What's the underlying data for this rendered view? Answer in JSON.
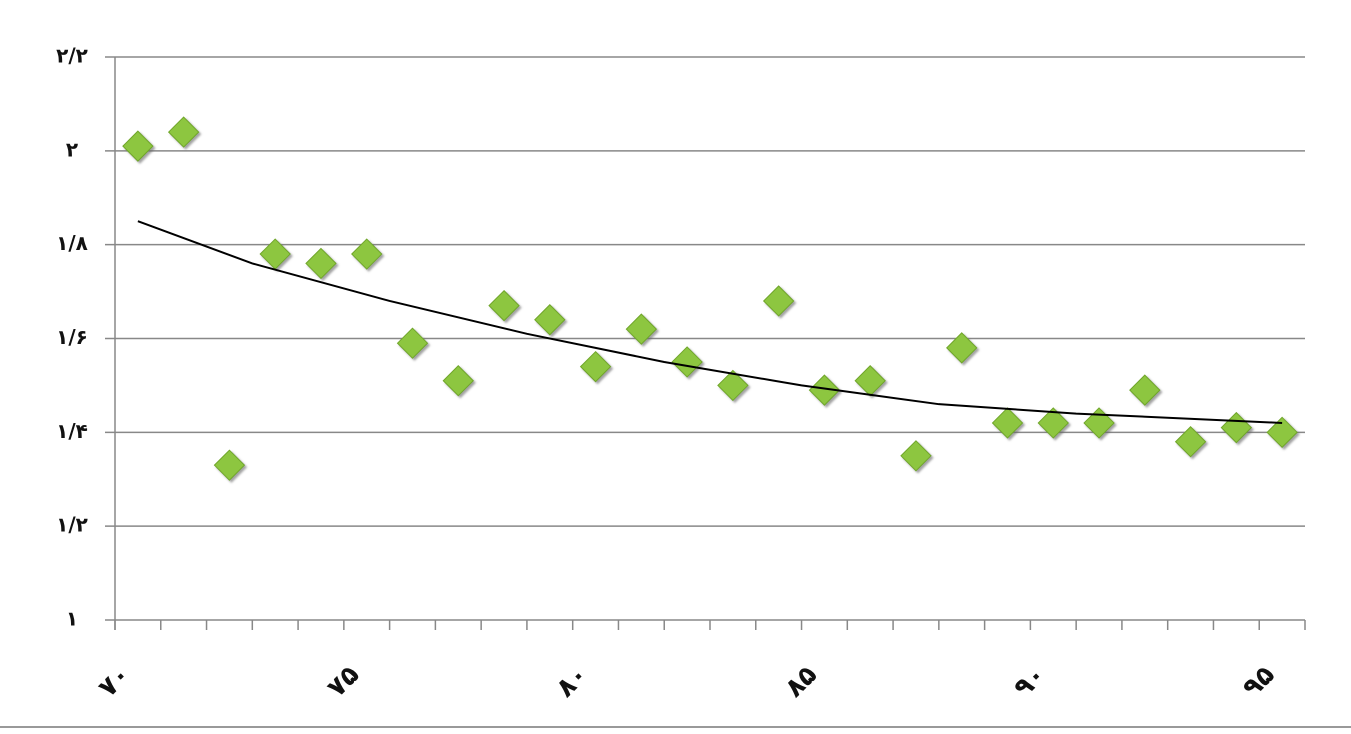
{
  "chart_data": {
    "type": "scatter",
    "x": [
      70.5,
      71.5,
      72.5,
      73.5,
      74.5,
      75.5,
      76.5,
      77.5,
      78.5,
      79.5,
      80.5,
      81.5,
      82.5,
      83.5,
      84.5,
      85.5,
      86.5,
      87.5,
      88.5,
      89.5,
      90.5,
      91.5,
      92.5,
      93.5,
      94.5,
      95.5
    ],
    "values": [
      2.01,
      2.04,
      1.33,
      1.78,
      1.76,
      1.78,
      1.59,
      1.51,
      1.67,
      1.64,
      1.54,
      1.62,
      1.55,
      1.5,
      1.68,
      1.49,
      1.51,
      1.35,
      1.58,
      1.42,
      1.42,
      1.42,
      1.49,
      1.38,
      1.41,
      1.4
    ],
    "color": "#8dc63f",
    "trendline": {
      "x": [
        70.5,
        73,
        76,
        79,
        82,
        85,
        88,
        91,
        95.5
      ],
      "y": [
        1.85,
        1.76,
        1.68,
        1.61,
        1.55,
        1.5,
        1.46,
        1.44,
        1.42
      ],
      "color": "#000000"
    },
    "xlim": [
      70,
      96
    ],
    "xticks": [
      {
        "value": 70,
        "label": "۷۰"
      },
      {
        "value": 75,
        "label": "۷۵"
      },
      {
        "value": 80,
        "label": "۸۰"
      },
      {
        "value": 85,
        "label": "۸۵"
      },
      {
        "value": 90,
        "label": "۹۰"
      },
      {
        "value": 95,
        "label": "۹۵"
      }
    ],
    "x_minor_ticks": [
      71,
      72,
      73,
      74,
      76,
      77,
      78,
      79,
      81,
      82,
      83,
      84,
      86,
      87,
      88,
      89,
      91,
      92,
      93,
      94,
      96
    ],
    "ylim": [
      1,
      2.2
    ],
    "yticks": [
      {
        "value": 1,
        "label": "۱"
      },
      {
        "value": 1.2,
        "label": "۱/۲"
      },
      {
        "value": 1.4,
        "label": "۱/۴"
      },
      {
        "value": 1.6,
        "label": "۱/۶"
      },
      {
        "value": 1.8,
        "label": "۱/۸"
      },
      {
        "value": 2,
        "label": "۲"
      },
      {
        "value": 2.2,
        "label": "۲/۲"
      }
    ],
    "grid": true
  }
}
